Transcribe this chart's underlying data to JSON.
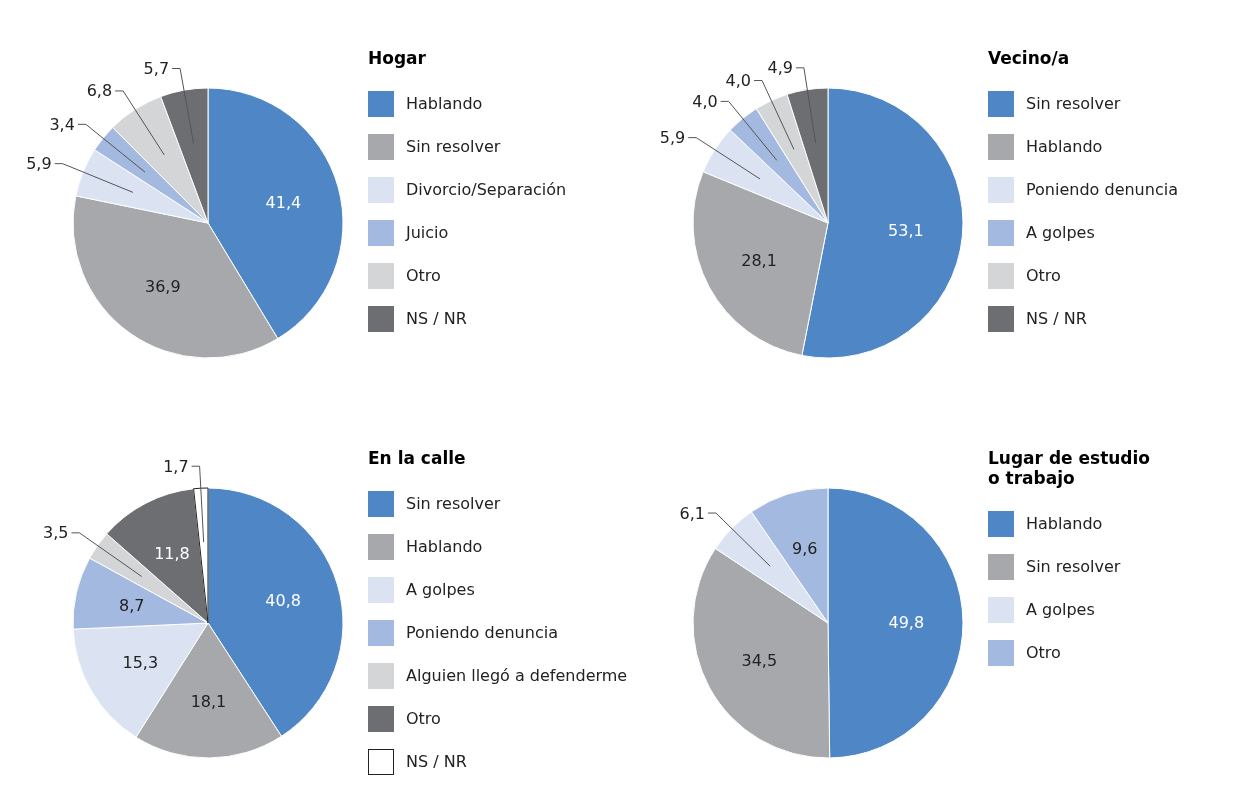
{
  "chart_data": [
    {
      "type": "pie",
      "title": "Hogar",
      "legend": "right",
      "categories": [
        "Hablando",
        "Sin resolver",
        "Divorcio/Separación",
        "Juicio",
        "Otro",
        "NS / NR"
      ],
      "values": [
        41.4,
        36.9,
        5.9,
        3.4,
        6.8,
        5.7
      ],
      "value_labels": [
        "41,4",
        "36,9",
        "5,9",
        "3,4",
        "6,8",
        "5,7"
      ],
      "colors": [
        "#4f86c6",
        "#a7a8ac",
        "#dbe3f3",
        "#a3b9e0",
        "#d4d5d7",
        "#6d6e72"
      ]
    },
    {
      "type": "pie",
      "title": "Vecino/a",
      "legend": "right",
      "categories": [
        "Sin resolver",
        "Hablando",
        "Poniendo denuncia",
        "A golpes",
        "Otro",
        "NS / NR"
      ],
      "values": [
        53.1,
        28.1,
        5.9,
        4.0,
        4.0,
        4.9
      ],
      "value_labels": [
        "53,1",
        "28,1",
        "5,9",
        "4,0",
        "4,0",
        "4,9"
      ],
      "colors": [
        "#4f86c6",
        "#a7a8ac",
        "#dbe3f3",
        "#a3b9e0",
        "#d4d5d7",
        "#6d6e72"
      ]
    },
    {
      "type": "pie",
      "title": "En la calle",
      "legend": "right",
      "categories": [
        "Sin resolver",
        "Hablando",
        "A golpes",
        "Poniendo denuncia",
        "Alguien llegó a defenderme",
        "Otro",
        "NS / NR"
      ],
      "values": [
        40.8,
        18.1,
        15.3,
        8.7,
        3.5,
        11.8,
        1.7
      ],
      "value_labels": [
        "40,8",
        "18,1",
        "15,3",
        "8,7",
        "3,5",
        "11,8",
        "1,7"
      ],
      "colors": [
        "#4f86c6",
        "#a7a8ac",
        "#dbe3f3",
        "#a3b9e0",
        "#d4d5d7",
        "#6d6e72",
        "#ffffff"
      ]
    },
    {
      "type": "pie",
      "title": "Lugar de estudio o trabajo",
      "legend": "right",
      "categories": [
        "Hablando",
        "Sin resolver",
        "A golpes",
        "Otro"
      ],
      "values": [
        49.8,
        34.5,
        6.1,
        9.6
      ],
      "value_labels": [
        "49,8",
        "34,5",
        "6,1",
        "9,6"
      ],
      "colors": [
        "#4f86c6",
        "#a7a8ac",
        "#dbe3f3",
        "#a3b9e0"
      ]
    }
  ]
}
